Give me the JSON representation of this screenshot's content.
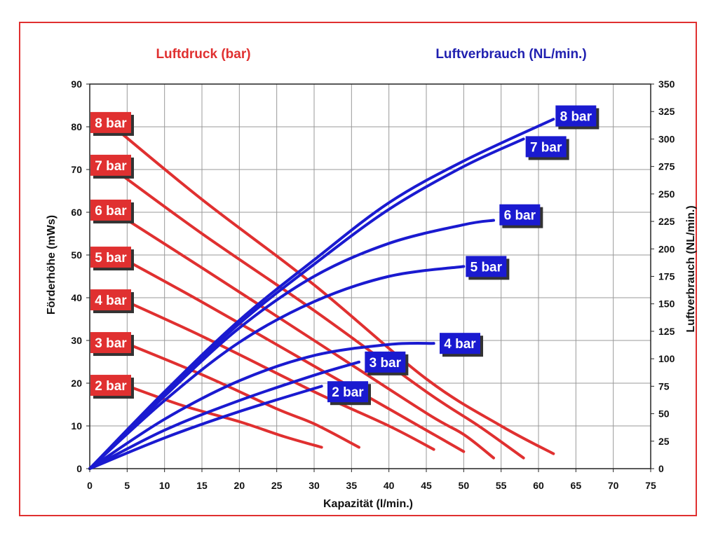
{
  "chart_data": {
    "type": "line",
    "headers": {
      "left": "Luftdruck (bar)",
      "right": "Luftverbrauch (NL/min.)"
    },
    "xlabel": "Kapazität (l/min.)",
    "ylabel_left": "Förderhöhe (mWs)",
    "ylabel_right": "Luftverbrauch (NL/min.)",
    "xlim": [
      0,
      75
    ],
    "ylim_left": [
      0,
      90
    ],
    "ylim_right": [
      0,
      350
    ],
    "x_ticks": [
      "0",
      "5",
      "10",
      "15",
      "20",
      "25",
      "30",
      "35",
      "40",
      "45",
      "50",
      "55",
      "60",
      "65",
      "70",
      "75"
    ],
    "y_left_ticks": [
      "0",
      "10",
      "20",
      "30",
      "40",
      "50",
      "60",
      "70",
      "80",
      "90"
    ],
    "y_right_ticks": [
      "0",
      "25",
      "50",
      "75",
      "100",
      "125",
      "150",
      "175",
      "200",
      "225",
      "250",
      "275",
      "300",
      "325",
      "350"
    ],
    "grid": true,
    "colors": {
      "pressure": "#e03030",
      "air": "#1a1ad0",
      "frame": "#e03030"
    },
    "pressure_series": [
      {
        "name": "8 bar",
        "points": [
          [
            2.5,
            81
          ],
          [
            15,
            63
          ],
          [
            30,
            43
          ],
          [
            45,
            21
          ],
          [
            55,
            10
          ],
          [
            62,
            3.5
          ]
        ]
      },
      {
        "name": "7 bar",
        "points": [
          [
            2.5,
            71
          ],
          [
            15,
            55
          ],
          [
            30,
            37
          ],
          [
            45,
            18
          ],
          [
            52,
            10
          ],
          [
            58,
            2.5
          ]
        ]
      },
      {
        "name": "6 bar",
        "points": [
          [
            2.5,
            61
          ],
          [
            15,
            47
          ],
          [
            30,
            30
          ],
          [
            45,
            13
          ],
          [
            50,
            8
          ],
          [
            54,
            2.5
          ]
        ]
      },
      {
        "name": "5 bar",
        "points": [
          [
            2.5,
            51
          ],
          [
            15,
            39
          ],
          [
            30,
            24
          ],
          [
            40,
            14
          ],
          [
            46,
            8
          ],
          [
            50,
            4
          ]
        ]
      },
      {
        "name": "4 bar",
        "points": [
          [
            2.5,
            41
          ],
          [
            15,
            31
          ],
          [
            30,
            18
          ],
          [
            40,
            10
          ],
          [
            46,
            4.5
          ]
        ]
      },
      {
        "name": "3 bar",
        "points": [
          [
            2.5,
            31
          ],
          [
            15,
            22
          ],
          [
            25,
            14
          ],
          [
            30,
            10.5
          ],
          [
            36,
            5
          ]
        ]
      },
      {
        "name": "2 bar",
        "points": [
          [
            2.5,
            21
          ],
          [
            12,
            15
          ],
          [
            20,
            11
          ],
          [
            26,
            7.5
          ],
          [
            31,
            5
          ]
        ]
      }
    ],
    "air_series": [
      {
        "name": "8 bar",
        "points": [
          [
            0,
            0
          ],
          [
            10,
            70
          ],
          [
            20,
            135
          ],
          [
            30,
            190
          ],
          [
            40,
            242
          ],
          [
            50,
            280
          ],
          [
            62,
            318
          ]
        ]
      },
      {
        "name": "7 bar",
        "points": [
          [
            0,
            0
          ],
          [
            10,
            68
          ],
          [
            20,
            132
          ],
          [
            30,
            186
          ],
          [
            40,
            236
          ],
          [
            50,
            275
          ],
          [
            58,
            300
          ]
        ]
      },
      {
        "name": "6 bar",
        "points": [
          [
            0,
            0
          ],
          [
            10,
            66
          ],
          [
            20,
            128
          ],
          [
            30,
            175
          ],
          [
            40,
            205
          ],
          [
            50,
            222
          ],
          [
            54,
            226
          ]
        ]
      },
      {
        "name": "5 bar",
        "points": [
          [
            0,
            0
          ],
          [
            10,
            62
          ],
          [
            20,
            115
          ],
          [
            30,
            152
          ],
          [
            40,
            175
          ],
          [
            50,
            184
          ]
        ]
      },
      {
        "name": "4 bar",
        "points": [
          [
            0,
            0
          ],
          [
            10,
            45
          ],
          [
            20,
            80
          ],
          [
            30,
            103
          ],
          [
            40,
            113
          ],
          [
            46,
            114
          ]
        ]
      },
      {
        "name": "3 bar",
        "points": [
          [
            0,
            0
          ],
          [
            10,
            35
          ],
          [
            20,
            62
          ],
          [
            30,
            85
          ],
          [
            36,
            97
          ]
        ]
      },
      {
        "name": "2 bar",
        "points": [
          [
            0,
            0
          ],
          [
            10,
            28
          ],
          [
            20,
            52
          ],
          [
            31,
            75
          ]
        ]
      }
    ],
    "pressure_labels": [
      {
        "text": "8 bar",
        "y": 81
      },
      {
        "text": "7 bar",
        "y": 71
      },
      {
        "text": "6 bar",
        "y": 60.5
      },
      {
        "text": "5 bar",
        "y": 49.5
      },
      {
        "text": "4 bar",
        "y": 39.5
      },
      {
        "text": "3 bar",
        "y": 29.5
      },
      {
        "text": "2 bar",
        "y": 19.5
      }
    ],
    "air_labels": [
      {
        "text": "8 bar",
        "x": 65,
        "y": 321
      },
      {
        "text": "7 bar",
        "x": 61,
        "y": 293
      },
      {
        "text": "6 bar",
        "x": 57.5,
        "y": 231
      },
      {
        "text": "5 bar",
        "x": 53,
        "y": 184
      },
      {
        "text": "4 bar",
        "x": 49.5,
        "y": 114
      },
      {
        "text": "3 bar",
        "x": 39.5,
        "y": 97
      },
      {
        "text": "2 bar",
        "x": 34.5,
        "y": 70
      }
    ]
  }
}
